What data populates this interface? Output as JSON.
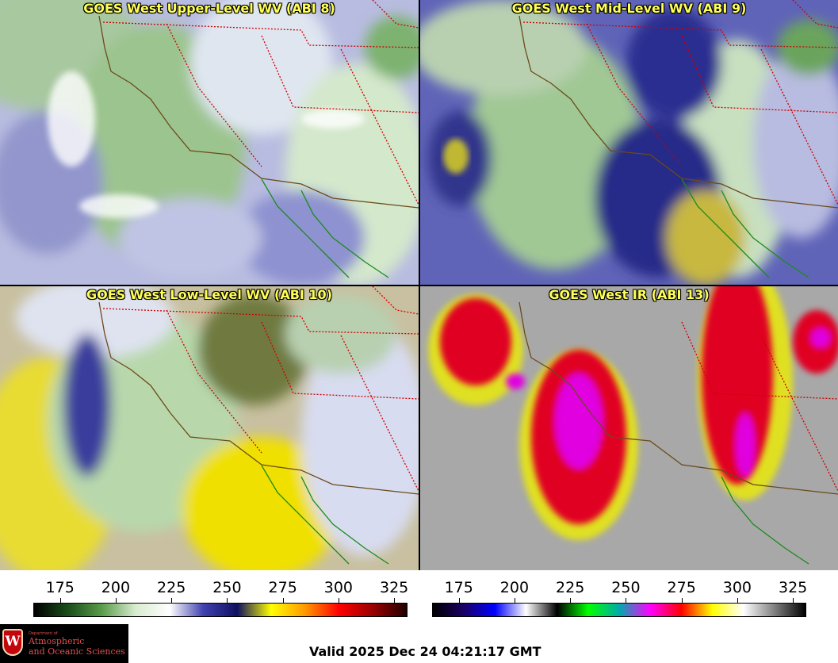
{
  "panels": [
    {
      "title": "GOES West Upper-Level WV (ABI 8)",
      "style": "wv_upper"
    },
    {
      "title": "GOES West Mid-Level WV (ABI 9)",
      "style": "wv_mid"
    },
    {
      "title": "GOES West Low-Level WV (ABI 10)",
      "style": "wv_low"
    },
    {
      "title": "GOES West IR (ABI 13)",
      "style": "ir"
    }
  ],
  "wv_scale": {
    "ticks": [
      "175",
      "200",
      "225",
      "250",
      "275",
      "300",
      "325"
    ],
    "range": [
      163,
      331
    ],
    "colors": [
      "#000000",
      "#1a4d1a",
      "#5a9c4a",
      "#d8ecd0",
      "#ffffff",
      "#4040b0",
      "#101060",
      "#ffff00",
      "#ff9900",
      "#ff0000",
      "#990000",
      "#200000"
    ]
  },
  "ir_scale": {
    "ticks": [
      "175",
      "200",
      "225",
      "250",
      "275",
      "300",
      "325"
    ],
    "range": [
      163,
      331
    ],
    "colors": [
      "#000000",
      "#1a0066",
      "#0000ff",
      "#ffffff",
      "#000000",
      "#00ff00",
      "#00aaaa",
      "#ff00ff",
      "#ff0000",
      "#ffff00",
      "#ffffff",
      "#808080",
      "#000000"
    ]
  },
  "logo": {
    "dept": "Department of",
    "line1": "Atmospheric",
    "line2": "and Oceanic Sciences",
    "crest_letter": "W"
  },
  "valid_text": "Valid 2025 Dec 24 04:21:17 GMT"
}
